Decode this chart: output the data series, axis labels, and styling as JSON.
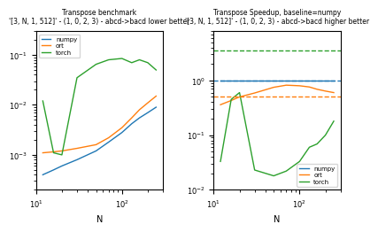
{
  "title_left": "Transpose benchmark",
  "subtitle_left": "'[3, N, 1, 512]' - (1, 0, 2, 3) - abcd->bacd lower better",
  "title_right": "Transpose Speedup, baseline=numpy",
  "subtitle_right": "'[3, N, 1, 512]' - (1, 0, 2, 3) - abcd->bacd higher better",
  "xlabel": "N",
  "colors": {
    "numpy": "#1f77b4",
    "ort": "#ff7f0e",
    "torch": "#2ca02c"
  },
  "N_values": [
    12,
    16,
    20,
    30,
    50,
    70,
    100,
    130,
    160,
    200,
    250
  ],
  "bench_numpy": [
    0.0004,
    0.0005,
    0.0006,
    0.0008,
    0.0012,
    0.0018,
    0.0028,
    0.0042,
    0.0055,
    0.007,
    0.009
  ],
  "bench_ort": [
    0.0011,
    0.00115,
    0.0012,
    0.00135,
    0.0016,
    0.0022,
    0.0035,
    0.0055,
    0.008,
    0.011,
    0.015
  ],
  "bench_torch": [
    0.012,
    0.0011,
    0.001,
    0.035,
    0.065,
    0.08,
    0.085,
    0.07,
    0.08,
    0.07,
    0.05
  ],
  "speed_numpy": [
    1.0,
    1.0,
    1.0,
    1.0,
    1.0,
    1.0,
    1.0,
    1.0,
    1.0,
    1.0,
    1.0
  ],
  "speed_ort": [
    0.36,
    0.43,
    0.5,
    0.59,
    0.75,
    0.82,
    0.8,
    0.76,
    0.69,
    0.64,
    0.6
  ],
  "speed_torch": [
    0.033,
    0.45,
    0.6,
    0.023,
    0.018,
    0.022,
    0.033,
    0.06,
    0.069,
    0.1,
    0.18
  ],
  "ref_numpy": 1.0,
  "ref_ort": 0.5,
  "ref_torch": 3.5,
  "xlim": [
    10,
    300
  ],
  "ylim_bench": [
    0.0002,
    0.3
  ],
  "ylim_speed": [
    0.01,
    8.0
  ]
}
